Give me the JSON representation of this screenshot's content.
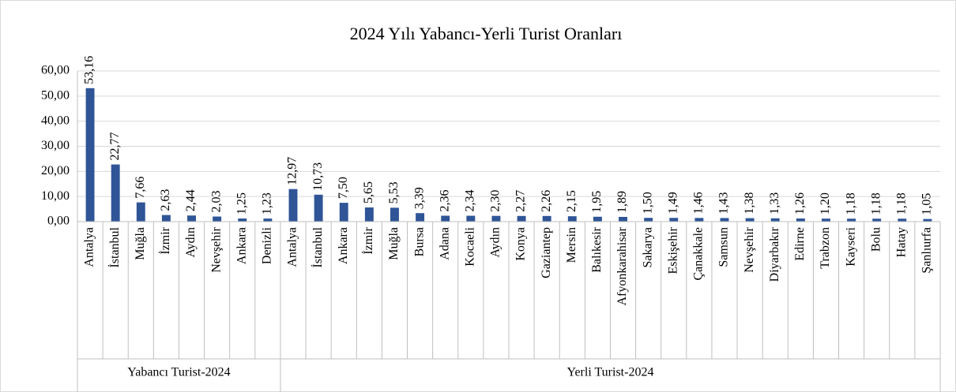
{
  "chart_data": {
    "type": "bar",
    "title": "2024 Yılı Yabancı-Yerli Turist Oranları",
    "color": "#2f5597",
    "grid": true,
    "ylim": [
      0,
      60
    ],
    "yticks": [
      {
        "value": 0,
        "label": "0,00"
      },
      {
        "value": 10,
        "label": "10,00"
      },
      {
        "value": 20,
        "label": "20,00"
      },
      {
        "value": 30,
        "label": "30,00"
      },
      {
        "value": 40,
        "label": "40,00"
      },
      {
        "value": 50,
        "label": "50,00"
      },
      {
        "value": 60,
        "label": "60,00"
      }
    ],
    "groups": [
      {
        "label": "Yabancı Turist-2024",
        "categories": [
          "Antalya",
          "İstanbul",
          "Muğla",
          "İzmir",
          "Aydın",
          "Nevşehir",
          "Ankara",
          "Denizli"
        ],
        "values": [
          53.16,
          22.77,
          7.66,
          2.63,
          2.44,
          2.03,
          1.25,
          1.23
        ],
        "value_labels": [
          "53,16",
          "22,77",
          "7,66",
          "2,63",
          "2,44",
          "2,03",
          "1,25",
          "1,23"
        ]
      },
      {
        "label": "Yerli Turist-2024",
        "categories": [
          "Antalya",
          "İstanbul",
          "Ankara",
          "İzmir",
          "Muğla",
          "Bursa",
          "Adana",
          "Kocaeli",
          "Aydın",
          "Konya",
          "Gaziantep",
          "Mersin",
          "Balıkesir",
          "Afyonkarahisar",
          "Sakarya",
          "Eskişehir",
          "Çanakkale",
          "Samsun",
          "Nevşehir",
          "Diyarbakır",
          "Edirne",
          "Trabzon",
          "Kayseri",
          "Bolu",
          "Hatay",
          "Şanlıurfa"
        ],
        "values": [
          12.97,
          10.73,
          7.5,
          5.65,
          5.53,
          3.39,
          2.36,
          2.34,
          2.3,
          2.27,
          2.26,
          2.15,
          1.95,
          1.89,
          1.5,
          1.49,
          1.46,
          1.43,
          1.38,
          1.33,
          1.26,
          1.2,
          1.18,
          1.18,
          1.18,
          1.05
        ],
        "value_labels": [
          "12,97",
          "10,73",
          "7,50",
          "5,65",
          "5,53",
          "3,39",
          "2,36",
          "2,34",
          "2,30",
          "2,27",
          "2,26",
          "2,15",
          "1,95",
          "1,89",
          "1,50",
          "1,49",
          "1,46",
          "1,43",
          "1,38",
          "1,33",
          "1,26",
          "1,20",
          "1,18",
          "1,18",
          "1,18",
          "1,05"
        ]
      }
    ]
  }
}
